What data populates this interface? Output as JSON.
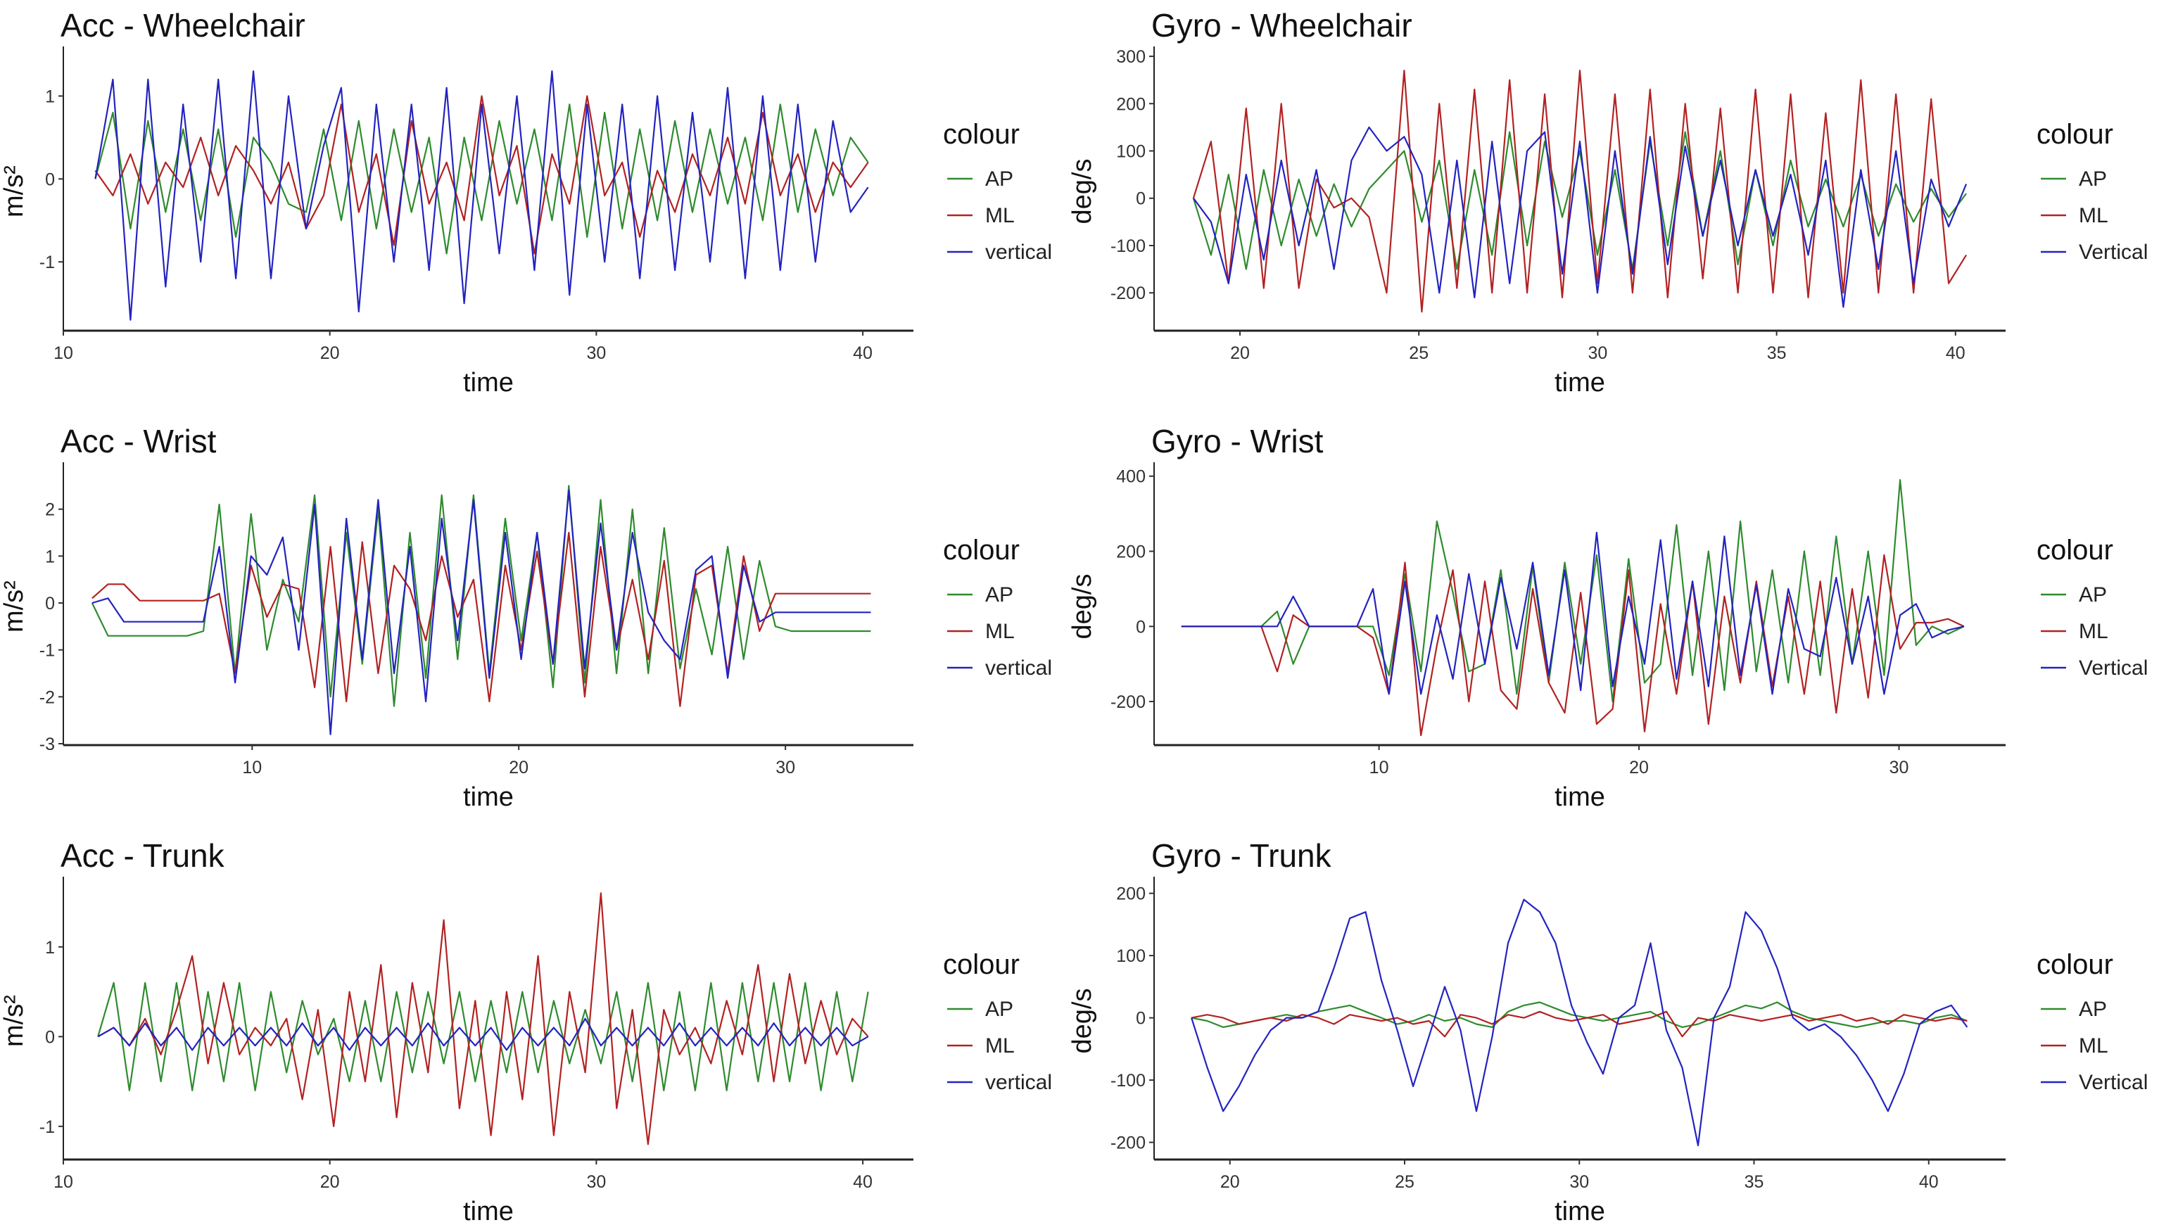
{
  "colors": {
    "AP": "#2e8b2e",
    "ML": "#b22222",
    "vertical": "#2323c0"
  },
  "chart_data": [
    {
      "type": "line",
      "title": "Acc - Wheelchair",
      "xlabel": "time",
      "ylabel": "m/s²",
      "xlim": [
        10,
        41.9
      ],
      "ylim": [
        -1.83,
        1.53
      ],
      "xticks": [
        10,
        20,
        30,
        40
      ],
      "yticks": [
        -1,
        0,
        1
      ],
      "grid": false,
      "legend": {
        "title": "colour",
        "position": "right"
      },
      "time_range": [
        11.2,
        40.2
      ],
      "series": [
        {
          "name": "AP",
          "values": [
            0,
            0.8,
            -0.6,
            0.7,
            -0.4,
            0.6,
            -0.5,
            0.6,
            -0.7,
            0.5,
            0.2,
            -0.3,
            -0.4,
            0.6,
            -0.5,
            0.7,
            -0.6,
            0.6,
            -0.4,
            0.5,
            -0.9,
            0.5,
            -0.5,
            0.7,
            -0.3,
            0.6,
            -0.5,
            0.9,
            -0.7,
            0.8,
            -0.6,
            0.6,
            -0.5,
            0.7,
            -0.4,
            0.6,
            -0.3,
            0.5,
            -0.5,
            0.9,
            -0.4,
            0.6,
            -0.2,
            0.5,
            0.2
          ]
        },
        {
          "name": "ML",
          "values": [
            0.1,
            -0.2,
            0.3,
            -0.3,
            0.2,
            -0.1,
            0.5,
            -0.2,
            0.4,
            0.1,
            -0.3,
            0.2,
            -0.6,
            -0.2,
            0.9,
            -0.4,
            0.3,
            -0.8,
            0.7,
            -0.3,
            0.2,
            -0.5,
            1,
            -0.2,
            0.4,
            -0.9,
            0.3,
            -0.3,
            1,
            -0.2,
            0.2,
            -0.7,
            0.1,
            -0.4,
            0.3,
            -0.2,
            0.5,
            -0.3,
            0.8,
            -0.2,
            0.3,
            -0.4,
            0.2,
            -0.1,
            0.2
          ]
        },
        {
          "name": "vertical",
          "values": [
            0,
            1.2,
            -1.7,
            1.2,
            -1.3,
            0.9,
            -1,
            1.2,
            -1.2,
            1.3,
            -1.2,
            1,
            -0.6,
            0.4,
            1.1,
            -1.6,
            0.9,
            -1,
            0.9,
            -1.1,
            1.1,
            -1.5,
            0.9,
            -0.9,
            1,
            -1.1,
            1.3,
            -1.4,
            0.9,
            -1,
            0.9,
            -1.2,
            1,
            -1.1,
            0.8,
            -1,
            1.1,
            -1.2,
            1,
            -1.1,
            0.9,
            -1,
            0.7,
            -0.4,
            -0.1
          ]
        }
      ]
    },
    {
      "type": "line",
      "title": "Gyro - Wheelchair",
      "xlabel": "time",
      "ylabel": "deg/s",
      "xlim": [
        17.6,
        41.4
      ],
      "ylim": [
        -280,
        309
      ],
      "xticks": [
        20,
        25,
        30,
        35,
        40
      ],
      "yticks": [
        -200,
        -100,
        0,
        100,
        200,
        300
      ],
      "grid": false,
      "legend": {
        "title": "colour",
        "position": "right"
      },
      "time_range": [
        18.7,
        40.3
      ],
      "series": [
        {
          "name": "AP",
          "values": [
            0,
            -120,
            50,
            -150,
            60,
            -100,
            40,
            -80,
            30,
            -60,
            20,
            60,
            100,
            -50,
            80,
            -150,
            60,
            -120,
            140,
            -100,
            120,
            -40,
            100,
            -120,
            60,
            -150,
            120,
            -100,
            140,
            -80,
            100,
            -140,
            60,
            -100,
            80,
            -60,
            40,
            -60,
            50,
            -80,
            30,
            -50,
            20,
            -40,
            10
          ]
        },
        {
          "name": "ML",
          "values": [
            0,
            120,
            -180,
            190,
            -190,
            200,
            -190,
            40,
            -20,
            0,
            -40,
            -200,
            270,
            -240,
            200,
            -190,
            230,
            -200,
            250,
            -200,
            220,
            -210,
            270,
            -180,
            220,
            -200,
            230,
            -210,
            200,
            -170,
            190,
            -200,
            230,
            -200,
            220,
            -210,
            180,
            -200,
            250,
            -200,
            220,
            -200,
            210,
            -180,
            -120
          ]
        },
        {
          "name": "Vertical",
          "values": [
            0,
            -50,
            -180,
            50,
            -130,
            80,
            -100,
            60,
            -150,
            80,
            150,
            100,
            130,
            50,
            -200,
            80,
            -210,
            120,
            -180,
            100,
            140,
            -160,
            120,
            -200,
            100,
            -160,
            130,
            -140,
            110,
            -80,
            80,
            -100,
            60,
            -80,
            50,
            -120,
            80,
            -230,
            60,
            -150,
            100,
            -180,
            40,
            -60,
            30
          ]
        }
      ]
    },
    {
      "type": "line",
      "title": "Acc - Wrist",
      "xlabel": "time",
      "ylabel": "m/s²",
      "xlim": [
        2.92,
        34.8
      ],
      "ylim": [
        -3.03,
        2.88
      ],
      "xticks": [
        10,
        20,
        30
      ],
      "yticks": [
        -3,
        -2,
        -1,
        0,
        1,
        2
      ],
      "grid": false,
      "legend": {
        "title": "colour",
        "position": "right"
      },
      "time_range": [
        4,
        33.2
      ],
      "series": [
        {
          "name": "AP",
          "values": [
            0,
            -0.7,
            -0.7,
            -0.7,
            -0.7,
            -0.7,
            -0.7,
            -0.6,
            2.1,
            -1.5,
            1.9,
            -1,
            0.5,
            -0.4,
            2.3,
            -2,
            1.5,
            -1.3,
            2,
            -2.2,
            1.5,
            -1.6,
            2.3,
            -1.2,
            2.3,
            -1.5,
            1.8,
            -0.8,
            1.5,
            -1.8,
            2.5,
            -1.7,
            2.2,
            -1.5,
            2,
            -1.5,
            1.6,
            -1.4,
            0.3,
            -1.1,
            1.2,
            -1.2,
            0.9,
            -0.5,
            -0.6,
            -0.6,
            -0.6,
            -0.6,
            -0.6,
            -0.6
          ]
        },
        {
          "name": "ML",
          "values": [
            0.1,
            0.4,
            0.4,
            0.05,
            0.05,
            0.05,
            0.05,
            0.05,
            0.2,
            -1.5,
            0.8,
            -0.3,
            0.4,
            0.3,
            -1.8,
            1.2,
            -2.1,
            1.3,
            -1.5,
            0.8,
            0.3,
            -0.8,
            1,
            -0.3,
            0.5,
            -2.1,
            0.8,
            -1,
            1.1,
            -1.3,
            1.5,
            -2,
            1.2,
            -1,
            0.5,
            -1.2,
            0.9,
            -2.2,
            0.6,
            0.8,
            -1.5,
            1,
            -0.6,
            0.2,
            0.2,
            0.2,
            0.2,
            0.2,
            0.2,
            0.2
          ]
        },
        {
          "name": "vertical",
          "values": [
            0,
            0.1,
            -0.4,
            -0.4,
            -0.4,
            -0.4,
            -0.4,
            -0.4,
            1.2,
            -1.7,
            1,
            0.6,
            1.4,
            -1,
            2.1,
            -2.8,
            1.8,
            -1.2,
            2.2,
            -1.5,
            1.2,
            -2.1,
            1.8,
            -0.8,
            2.2,
            -1.6,
            1.5,
            -1.2,
            1.5,
            -1.3,
            2.4,
            -1.4,
            1.7,
            -1,
            1.5,
            -0.2,
            -0.8,
            -1.2,
            0.7,
            1,
            -1.6,
            0.8,
            -0.4,
            -0.2,
            -0.2,
            -0.2,
            -0.2,
            -0.2,
            -0.2,
            -0.2
          ]
        }
      ]
    },
    {
      "type": "line",
      "title": "Gyro - Wrist",
      "xlabel": "time",
      "ylabel": "deg/s",
      "xlim": [
        1.35,
        34.1
      ],
      "ylim": [
        -316,
        422
      ],
      "xticks": [
        10,
        20,
        30
      ],
      "yticks": [
        -200,
        0,
        200,
        400
      ],
      "grid": false,
      "legend": {
        "title": "colour",
        "position": "right"
      },
      "time_range": [
        2.4,
        32.5
      ],
      "series": [
        {
          "name": "AP",
          "values": [
            0,
            0,
            0,
            0,
            0,
            0,
            40,
            -100,
            0,
            0,
            0,
            0,
            0,
            -130,
            140,
            -120,
            280,
            90,
            -120,
            -100,
            150,
            -180,
            160,
            -150,
            170,
            -100,
            190,
            -200,
            180,
            -150,
            -100,
            270,
            -130,
            200,
            -170,
            280,
            -120,
            150,
            -150,
            200,
            -130,
            240,
            -100,
            200,
            -130,
            390,
            -50,
            0,
            -20,
            0
          ]
        },
        {
          "name": "ML",
          "values": [
            0,
            0,
            0,
            0,
            0,
            0,
            -120,
            30,
            0,
            0,
            0,
            0,
            -30,
            -180,
            170,
            -290,
            -50,
            150,
            -200,
            120,
            -170,
            -220,
            100,
            -150,
            -230,
            90,
            -260,
            -220,
            150,
            -280,
            60,
            -180,
            120,
            -260,
            80,
            -150,
            120,
            -160,
            80,
            -180,
            120,
            -230,
            100,
            -190,
            190,
            -60,
            10,
            10,
            20,
            0
          ]
        },
        {
          "name": "Vertical",
          "values": [
            0,
            0,
            0,
            0,
            0,
            0,
            0,
            80,
            0,
            0,
            0,
            0,
            100,
            -180,
            120,
            -180,
            30,
            -140,
            140,
            -100,
            130,
            -60,
            170,
            -130,
            150,
            -170,
            250,
            -160,
            80,
            -100,
            230,
            -140,
            120,
            -160,
            240,
            -130,
            110,
            -180,
            100,
            -60,
            -80,
            130,
            -100,
            80,
            -180,
            30,
            60,
            -30,
            -10,
            0
          ]
        }
      ]
    },
    {
      "type": "line",
      "title": "Acc - Trunk",
      "xlabel": "time",
      "ylabel": "m/s²",
      "xlim": [
        10,
        41.9
      ],
      "ylim": [
        -1.37,
        1.72
      ],
      "xticks": [
        10,
        20,
        30,
        40
      ],
      "yticks": [
        -1,
        0,
        1
      ],
      "grid": false,
      "legend": {
        "title": "colour",
        "position": "right"
      },
      "time_range": [
        11.3,
        40.2
      ],
      "series": [
        {
          "name": "AP",
          "values": [
            0,
            0.6,
            -0.6,
            0.6,
            -0.5,
            0.6,
            -0.6,
            0.5,
            -0.5,
            0.6,
            -0.6,
            0.5,
            -0.4,
            0.4,
            -0.2,
            0.2,
            -0.5,
            0.4,
            -0.5,
            0.5,
            -0.4,
            0.5,
            -0.3,
            0.5,
            -0.5,
            0.4,
            -0.4,
            0.5,
            -0.4,
            0.4,
            -0.3,
            0.3,
            -0.3,
            0.5,
            -0.5,
            0.6,
            -0.6,
            0.5,
            -0.6,
            0.6,
            -0.6,
            0.6,
            -0.5,
            0.6,
            -0.5,
            0.6,
            -0.6,
            0.5,
            -0.5,
            0.5
          ]
        },
        {
          "name": "ML",
          "values": [
            0,
            0.1,
            -0.1,
            0.2,
            -0.2,
            0.3,
            0.9,
            -0.3,
            0.6,
            -0.2,
            0.1,
            -0.1,
            0.2,
            -0.7,
            0.3,
            -1,
            0.5,
            -0.5,
            0.8,
            -0.9,
            0.6,
            -0.4,
            1.3,
            -0.8,
            0.4,
            -1.1,
            0.5,
            -0.7,
            0.9,
            -1.1,
            0.5,
            -0.4,
            1.6,
            -0.8,
            0.3,
            -1.2,
            0.3,
            -0.2,
            0.1,
            -0.3,
            0.4,
            -0.2,
            0.8,
            -0.5,
            0.7,
            -0.3,
            0.4,
            -0.2,
            0.2,
            0
          ]
        },
        {
          "name": "vertical",
          "values": [
            0,
            0.1,
            -0.1,
            0.15,
            -0.1,
            0.1,
            -0.15,
            0.1,
            -0.1,
            0.1,
            -0.1,
            0.1,
            -0.1,
            0.15,
            -0.1,
            0.1,
            -0.15,
            0.1,
            -0.1,
            0.1,
            -0.1,
            0.15,
            -0.1,
            0.1,
            -0.1,
            0.1,
            -0.15,
            0.1,
            -0.1,
            0.1,
            -0.1,
            0.2,
            -0.1,
            0.1,
            -0.1,
            0.1,
            -0.1,
            0.15,
            -0.1,
            0.1,
            -0.1,
            0.1,
            -0.1,
            0.15,
            -0.1,
            0.1,
            -0.1,
            0.1,
            -0.1,
            0
          ]
        }
      ]
    },
    {
      "type": "line",
      "title": "Gyro - Trunk",
      "xlabel": "time",
      "ylabel": "deg/s",
      "xlim": [
        17.83,
        42.2
      ],
      "ylim": [
        -227.6,
        217.7
      ],
      "xticks": [
        20,
        25,
        30,
        35,
        40
      ],
      "yticks": [
        -200,
        -100,
        0,
        100,
        200
      ],
      "grid": false,
      "legend": {
        "title": "colour",
        "position": "right"
      },
      "time_range": [
        18.9,
        41.1
      ],
      "series": [
        {
          "name": "AP",
          "values": [
            0,
            -5,
            -15,
            -10,
            -5,
            0,
            5,
            0,
            10,
            15,
            20,
            10,
            0,
            -10,
            -5,
            5,
            -5,
            0,
            -10,
            -15,
            10,
            20,
            25,
            15,
            5,
            0,
            -5,
            0,
            5,
            10,
            -5,
            -15,
            -10,
            0,
            10,
            20,
            15,
            25,
            10,
            0,
            -5,
            -10,
            -15,
            -10,
            -5,
            -5,
            -10,
            0,
            5,
            -5
          ]
        },
        {
          "name": "ML",
          "values": [
            0,
            5,
            0,
            -10,
            -5,
            0,
            -5,
            5,
            0,
            -10,
            5,
            0,
            -5,
            0,
            -10,
            -5,
            -30,
            5,
            0,
            -10,
            5,
            0,
            10,
            0,
            -5,
            0,
            5,
            -10,
            -5,
            0,
            10,
            -30,
            0,
            -5,
            5,
            0,
            -5,
            0,
            5,
            -5,
            0,
            5,
            -5,
            0,
            -10,
            5,
            0,
            -5,
            0,
            -5
          ]
        },
        {
          "name": "Vertical",
          "values": [
            0,
            -80,
            -150,
            -110,
            -60,
            -20,
            0,
            0,
            10,
            80,
            160,
            170,
            60,
            -20,
            -110,
            -30,
            50,
            -20,
            -150,
            -30,
            120,
            190,
            170,
            120,
            20,
            -40,
            -90,
            0,
            20,
            120,
            -20,
            -80,
            -205,
            0,
            50,
            170,
            140,
            80,
            0,
            -20,
            -10,
            -30,
            -60,
            -100,
            -150,
            -90,
            -10,
            10,
            20,
            -15
          ]
        }
      ]
    }
  ]
}
